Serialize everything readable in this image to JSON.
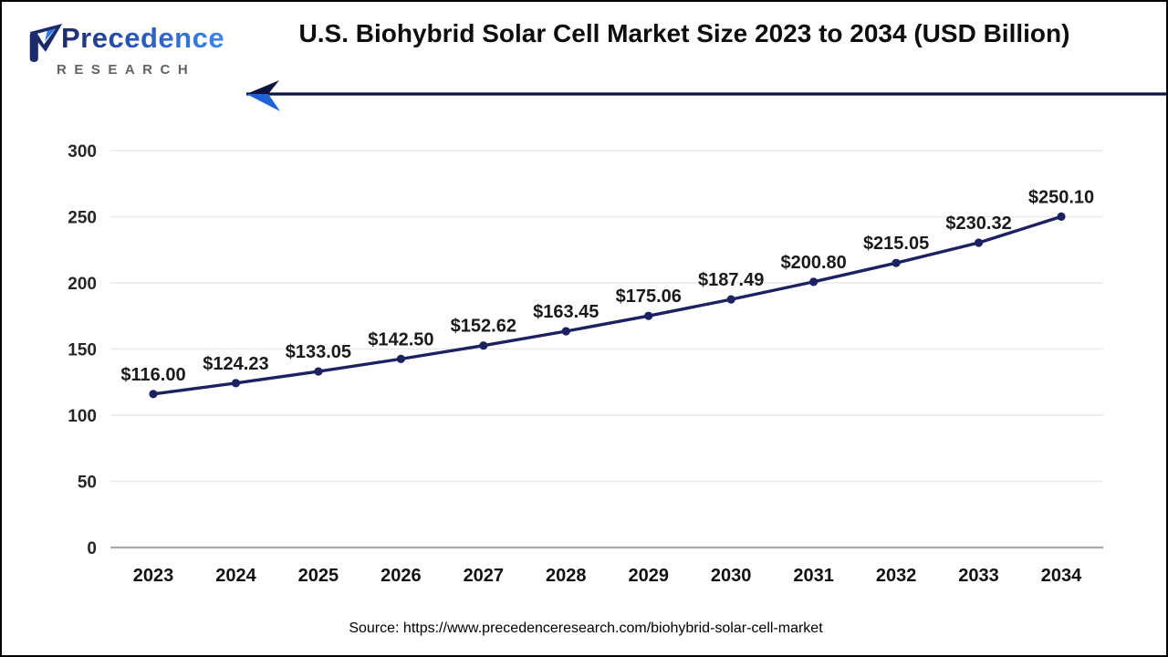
{
  "logo": {
    "brand": "Precedence",
    "subtitle": "RESEARCH"
  },
  "header": {
    "title": "U.S. Biohybrid Solar Cell Market Size 2023 to 2034 (USD Billion)"
  },
  "footer": {
    "source": "Source: https://www.precedenceresearch.com/biohybrid-solar-cell-market"
  },
  "colors": {
    "line": "#1b2161",
    "marker": "#1b2161",
    "grid": "#e9e9e9",
    "zero_axis": "#ababab",
    "y_tick_label": "#262626",
    "x_tick_label": "#111111",
    "data_label": "#1a1a1a",
    "title_text": "#0d0d0d",
    "arrow_line": "#0e1440",
    "arrow_top": "#0d1440",
    "arrow_bottom": "#1e62d6",
    "logo_dark_blue": "#1b2a6b",
    "logo_bright_blue": "#2f7de1",
    "logo_gray": "#636363",
    "background": "#ffffff"
  },
  "chart_data": {
    "type": "line",
    "title": "U.S. Biohybrid Solar Cell Market Size 2023 to 2034 (USD Billion)",
    "categories": [
      "2023",
      "2024",
      "2025",
      "2026",
      "2027",
      "2028",
      "2029",
      "2030",
      "2031",
      "2032",
      "2033",
      "2034"
    ],
    "values": [
      116.0,
      124.23,
      133.05,
      142.5,
      152.62,
      163.45,
      175.06,
      187.49,
      200.8,
      215.05,
      230.32,
      250.1
    ],
    "data_labels": [
      "$116.00",
      "$124.23",
      "$133.05",
      "$142.50",
      "$152.62",
      "$163.45",
      "$175.06",
      "$187.49",
      "$200.80",
      "$215.05",
      "$230.32",
      "$250.10"
    ],
    "xlabel": "",
    "ylabel": "",
    "ylim": [
      0,
      300
    ],
    "yticks": [
      0,
      50,
      100,
      150,
      200,
      250,
      300
    ],
    "grid": true,
    "legend": false,
    "marker": "circle"
  }
}
